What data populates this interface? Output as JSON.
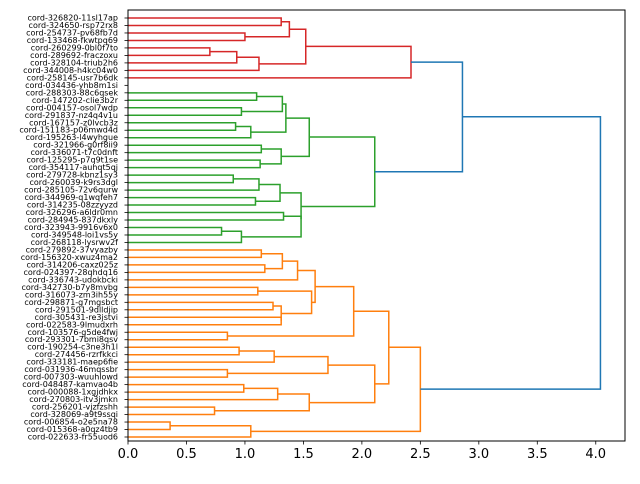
{
  "chart_data": {
    "type": "dendrogram",
    "orientation": "horizontal",
    "title": "",
    "xlabel": "",
    "ylabel": "",
    "xlim": [
      0,
      4.25
    ],
    "xticks": [
      "0.0",
      "0.5",
      "1.0",
      "1.5",
      "2.0",
      "2.5",
      "3.0",
      "3.5",
      "4.0"
    ],
    "grid": false,
    "colors": {
      "red": "#d62728",
      "green": "#2ca02c",
      "orange": "#ff7f0e",
      "blue": "#1f77b4"
    },
    "leaves": [
      "cord-326820-11sl17ap",
      "cord-324650-rsp72rx8",
      "cord-254737-pv68fb7d",
      "cord-133468-fkwtpq69",
      "cord-260299-0bl0f7to",
      "cord-289692-fraczoxu",
      "cord-328104-triub2h6",
      "cord-344008-h4kc04w0",
      "cord-258145-usr7b6dk",
      "cord-034436-yhb8m1si",
      "cord-288303-88c6qsek",
      "cord-147202-clie3b2r",
      "cord-004157-osol7wdp",
      "cord-291837-nz4q4v1u",
      "cord-167157-z0lvcb3z",
      "cord-151183-p06mwd4d",
      "cord-195263-l4wyhgue",
      "cord-321966-g0rf8ii9",
      "cord-336071-t7c0dnft",
      "cord-125295-p7q9t1se",
      "cord-354117-auhqt5qj",
      "cord-279728-kbnz1sy3",
      "cord-260039-k9rs3dgl",
      "cord-285105-72v6qurw",
      "cord-344969-q1wqfeh7",
      "cord-314235-08zzyyzd",
      "cord-326296-a6ldr0mn",
      "cord-284945-837dkxly",
      "cord-323943-9916v6x0",
      "cord-349548-loi1vs5y",
      "cord-268118-lysrwv2f",
      "cord-279892-37vyazby",
      "cord-156320-xwuz4ma2",
      "cord-314206-caxz025z",
      "cord-024397-28qhdq16",
      "cord-336743-udokbcki",
      "cord-342730-b7y8mvbg",
      "cord-316073-zm3ih55y",
      "cord-298871-g7mgsbct",
      "cord-291501-9dlldjip",
      "cord-305431-re3jstvi",
      "cord-022583-9lmudxrh",
      "cord-103576-g5de4fwj",
      "cord-293301-7bmi8qsv",
      "cord-190254-c3ne3h1l",
      "cord-274456-rzrfkkci",
      "cord-333181-maep6fie",
      "cord-031936-46mqssbr",
      "cord-007303-wuuhlowd",
      "cord-048487-kamvao4b",
      "cord-000088-1xgjdhkx",
      "cord-270803-itv3jmkn",
      "cord-256201-vjzfzshh",
      "cord-328069-a9t9ssqi",
      "cord-006854-o2e5na78",
      "cord-015368-a0qz4tb9",
      "cord-022633-fr55uod6"
    ],
    "links": [
      {
        "c": "red",
        "p": [
          [
            0,
            0
          ],
          [
            1.31,
            0
          ],
          [
            1.31,
            1
          ],
          [
            0,
            1
          ]
        ]
      },
      {
        "c": "red",
        "p": [
          [
            1.31,
            0.5
          ],
          [
            1.38,
            0.5
          ],
          [
            1.38,
            2.5
          ],
          [
            1.0,
            2.5
          ]
        ]
      },
      {
        "c": "red",
        "p": [
          [
            0,
            2
          ],
          [
            1.0,
            2
          ],
          [
            1.0,
            3
          ],
          [
            0,
            3
          ]
        ]
      },
      {
        "c": "red",
        "p": [
          [
            0,
            4
          ],
          [
            0.7,
            4
          ],
          [
            0.7,
            5
          ],
          [
            0,
            5
          ]
        ]
      },
      {
        "c": "red",
        "p": [
          [
            0.7,
            4.5
          ],
          [
            0.93,
            4.5
          ],
          [
            0.93,
            6
          ],
          [
            0,
            6
          ]
        ]
      },
      {
        "c": "red",
        "p": [
          [
            0.93,
            5.25
          ],
          [
            1.12,
            5.25
          ],
          [
            1.12,
            7
          ],
          [
            0,
            7
          ]
        ]
      },
      {
        "c": "red",
        "p": [
          [
            1.38,
            1.5
          ],
          [
            1.52,
            1.5
          ],
          [
            1.52,
            6.125
          ],
          [
            1.12,
            6.125
          ]
        ]
      },
      {
        "c": "red",
        "p": [
          [
            1.52,
            3.8
          ],
          [
            2.42,
            3.8
          ],
          [
            2.42,
            8
          ],
          [
            0,
            8
          ]
        ]
      },
      {
        "c": "green",
        "p": [
          [
            0,
            10
          ],
          [
            1.1,
            10
          ],
          [
            1.1,
            11
          ],
          [
            0,
            11
          ]
        ]
      },
      {
        "c": "green",
        "p": [
          [
            0,
            12
          ],
          [
            0.97,
            12
          ],
          [
            0.97,
            13
          ],
          [
            0,
            13
          ]
        ]
      },
      {
        "c": "green",
        "p": [
          [
            1.1,
            10.5
          ],
          [
            1.32,
            10.5
          ],
          [
            1.32,
            12.5
          ],
          [
            0.97,
            12.5
          ]
        ]
      },
      {
        "c": "green",
        "p": [
          [
            0,
            14
          ],
          [
            0.92,
            14
          ],
          [
            0.92,
            15
          ],
          [
            0,
            15
          ]
        ]
      },
      {
        "c": "green",
        "p": [
          [
            0.92,
            14.5
          ],
          [
            1.05,
            14.5
          ],
          [
            1.05,
            16
          ],
          [
            0,
            16
          ]
        ]
      },
      {
        "c": "green",
        "p": [
          [
            1.32,
            11.5
          ],
          [
            1.35,
            11.5
          ],
          [
            1.35,
            15.25
          ],
          [
            1.05,
            15.25
          ]
        ]
      },
      {
        "c": "green",
        "p": [
          [
            0,
            17
          ],
          [
            1.14,
            17
          ],
          [
            1.14,
            18
          ],
          [
            0,
            18
          ]
        ]
      },
      {
        "c": "green",
        "p": [
          [
            0,
            19
          ],
          [
            1.13,
            19
          ],
          [
            1.13,
            20
          ],
          [
            0,
            20
          ]
        ]
      },
      {
        "c": "green",
        "p": [
          [
            1.14,
            17.5
          ],
          [
            1.31,
            17.5
          ],
          [
            1.31,
            19.5
          ],
          [
            1.13,
            19.5
          ]
        ]
      },
      {
        "c": "green",
        "p": [
          [
            1.35,
            13.375
          ],
          [
            1.55,
            13.375
          ],
          [
            1.55,
            18.5
          ],
          [
            1.31,
            18.5
          ]
        ]
      },
      {
        "c": "green",
        "p": [
          [
            0,
            21
          ],
          [
            0.9,
            21
          ],
          [
            0.9,
            22
          ],
          [
            0,
            22
          ]
        ]
      },
      {
        "c": "green",
        "p": [
          [
            0.9,
            21.5
          ],
          [
            1.12,
            21.5
          ],
          [
            1.12,
            23
          ],
          [
            0,
            23
          ]
        ]
      },
      {
        "c": "green",
        "p": [
          [
            0,
            24
          ],
          [
            1.09,
            24
          ],
          [
            1.09,
            25
          ],
          [
            0,
            25
          ]
        ]
      },
      {
        "c": "green",
        "p": [
          [
            1.12,
            22.25
          ],
          [
            1.3,
            22.25
          ],
          [
            1.3,
            24.5
          ],
          [
            1.09,
            24.5
          ]
        ]
      },
      {
        "c": "green",
        "p": [
          [
            0,
            26
          ],
          [
            1.33,
            26
          ],
          [
            1.33,
            27
          ],
          [
            0,
            27
          ]
        ]
      },
      {
        "c": "green",
        "p": [
          [
            0,
            28
          ],
          [
            0.8,
            28
          ],
          [
            0.8,
            29
          ],
          [
            0,
            29
          ]
        ]
      },
      {
        "c": "green",
        "p": [
          [
            0.8,
            28.5
          ],
          [
            0.97,
            28.5
          ],
          [
            0.97,
            30
          ],
          [
            0,
            30
          ]
        ]
      },
      {
        "c": "green",
        "p": [
          [
            1.33,
            26.5
          ],
          [
            1.48,
            26.5
          ],
          [
            1.48,
            29.25
          ],
          [
            0.97,
            29.25
          ]
        ]
      },
      {
        "c": "green",
        "p": [
          [
            1.3,
            23.375
          ],
          [
            1.48,
            23.375
          ],
          [
            1.48,
            26.9
          ],
          [
            1.48,
            26.9
          ]
        ]
      },
      {
        "c": "green",
        "p": [
          [
            1.55,
            15.9
          ],
          [
            2.11,
            15.9
          ],
          [
            2.11,
            25.2
          ],
          [
            1.48,
            25.2
          ]
        ]
      },
      {
        "c": "orange",
        "p": [
          [
            0,
            31
          ],
          [
            1.14,
            31
          ],
          [
            1.14,
            32
          ],
          [
            0,
            32
          ]
        ]
      },
      {
        "c": "orange",
        "p": [
          [
            0,
            33
          ],
          [
            1.17,
            33
          ],
          [
            1.17,
            34
          ],
          [
            0,
            34
          ]
        ]
      },
      {
        "c": "orange",
        "p": [
          [
            1.14,
            31.5
          ],
          [
            1.32,
            31.5
          ],
          [
            1.32,
            33.5
          ],
          [
            1.17,
            33.5
          ]
        ]
      },
      {
        "c": "orange",
        "p": [
          [
            1.32,
            32.5
          ],
          [
            1.45,
            32.5
          ],
          [
            1.45,
            35
          ],
          [
            0,
            35
          ]
        ]
      },
      {
        "c": "orange",
        "p": [
          [
            0,
            36
          ],
          [
            1.11,
            36
          ],
          [
            1.11,
            37
          ],
          [
            0,
            37
          ]
        ]
      },
      {
        "c": "orange",
        "p": [
          [
            0,
            38
          ],
          [
            1.24,
            38
          ],
          [
            1.24,
            39
          ],
          [
            0,
            39
          ]
        ]
      },
      {
        "c": "orange",
        "p": [
          [
            0,
            40
          ],
          [
            1.31,
            40
          ],
          [
            1.31,
            41
          ],
          [
            0,
            41
          ]
        ]
      },
      {
        "c": "orange",
        "p": [
          [
            1.24,
            38.5
          ],
          [
            1.31,
            38.5
          ],
          [
            1.31,
            40.5
          ],
          [
            1.31,
            40.5
          ]
        ]
      },
      {
        "c": "orange",
        "p": [
          [
            1.11,
            36.5
          ],
          [
            1.57,
            36.5
          ],
          [
            1.57,
            39.5
          ],
          [
            1.31,
            39.5
          ]
        ]
      },
      {
        "c": "orange",
        "p": [
          [
            1.45,
            33.75
          ],
          [
            1.6,
            33.75
          ],
          [
            1.6,
            38
          ],
          [
            1.57,
            38
          ]
        ]
      },
      {
        "c": "orange",
        "p": [
          [
            0,
            42
          ],
          [
            0.85,
            42
          ],
          [
            0.85,
            43
          ],
          [
            0,
            43
          ]
        ]
      },
      {
        "c": "orange",
        "p": [
          [
            1.6,
            35.9
          ],
          [
            1.93,
            35.9
          ],
          [
            1.93,
            42.5
          ],
          [
            0.85,
            42.5
          ]
        ]
      },
      {
        "c": "orange",
        "p": [
          [
            0,
            44
          ],
          [
            0.95,
            44
          ],
          [
            0.95,
            45
          ],
          [
            0,
            45
          ]
        ]
      },
      {
        "c": "orange",
        "p": [
          [
            0.95,
            44.5
          ],
          [
            1.25,
            44.5
          ],
          [
            1.25,
            46
          ],
          [
            0,
            46
          ]
        ]
      },
      {
        "c": "orange",
        "p": [
          [
            0,
            47
          ],
          [
            0.85,
            47
          ],
          [
            0.85,
            48
          ],
          [
            0,
            48
          ]
        ]
      },
      {
        "c": "orange",
        "p": [
          [
            1.25,
            45.25
          ],
          [
            1.71,
            45.25
          ],
          [
            1.71,
            47.5
          ],
          [
            0.85,
            47.5
          ]
        ]
      },
      {
        "c": "orange",
        "p": [
          [
            0,
            49
          ],
          [
            0.99,
            49
          ],
          [
            0.99,
            50
          ],
          [
            0,
            50
          ]
        ]
      },
      {
        "c": "orange",
        "p": [
          [
            0.99,
            49.5
          ],
          [
            1.28,
            49.5
          ],
          [
            1.28,
            51
          ],
          [
            0,
            51
          ]
        ]
      },
      {
        "c": "orange",
        "p": [
          [
            0,
            52
          ],
          [
            0.74,
            52
          ],
          [
            0.74,
            53
          ],
          [
            0,
            53
          ]
        ]
      },
      {
        "c": "orange",
        "p": [
          [
            1.28,
            50.25
          ],
          [
            1.55,
            50.25
          ],
          [
            1.55,
            52.5
          ],
          [
            0.74,
            52.5
          ]
        ]
      },
      {
        "c": "orange",
        "p": [
          [
            1.71,
            46.4
          ],
          [
            2.11,
            46.4
          ],
          [
            2.11,
            51.4
          ],
          [
            1.55,
            51.4
          ]
        ]
      },
      {
        "c": "orange",
        "p": [
          [
            1.93,
            39.2
          ],
          [
            2.23,
            39.2
          ],
          [
            2.23,
            48.9
          ],
          [
            2.11,
            48.9
          ]
        ]
      },
      {
        "c": "orange",
        "p": [
          [
            0,
            54
          ],
          [
            0.36,
            54
          ],
          [
            0.36,
            55
          ],
          [
            0,
            55
          ]
        ]
      },
      {
        "c": "orange",
        "p": [
          [
            0.36,
            54.5
          ],
          [
            1.05,
            54.5
          ],
          [
            1.05,
            56
          ],
          [
            0,
            56
          ]
        ]
      },
      {
        "c": "orange",
        "p": [
          [
            2.23,
            44
          ],
          [
            2.5,
            44
          ],
          [
            2.5,
            55.25
          ],
          [
            1.05,
            55.25
          ]
        ]
      },
      {
        "c": "blue",
        "p": [
          [
            2.42,
            5.9
          ],
          [
            2.86,
            5.9
          ],
          [
            2.86,
            20.55
          ],
          [
            2.11,
            20.55
          ]
        ]
      },
      {
        "c": "blue",
        "p": [
          [
            2.86,
            13.2
          ],
          [
            4.04,
            13.2
          ],
          [
            4.04,
            49.6
          ],
          [
            2.5,
            49.6
          ]
        ]
      }
    ]
  }
}
